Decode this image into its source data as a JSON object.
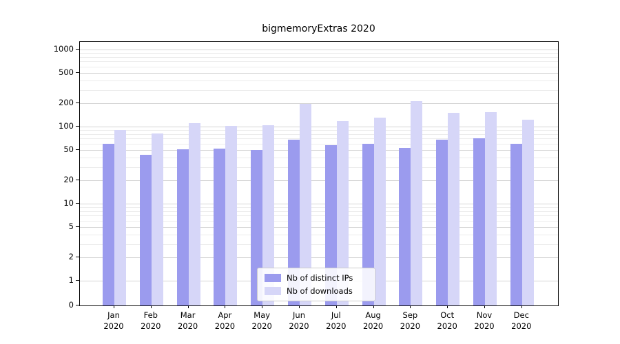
{
  "chart_data": {
    "type": "bar",
    "title": "bigmemoryExtras 2020",
    "categories": [
      "Jan",
      "Feb",
      "Mar",
      "Apr",
      "May",
      "Jun",
      "Jul",
      "Aug",
      "Sep",
      "Oct",
      "Nov",
      "Dec"
    ],
    "category_year": "2020",
    "series": [
      {
        "name": "Nb of distinct IPs",
        "color": "#9b9bee",
        "values": [
          60,
          43,
          51,
          52,
          50,
          68,
          58,
          60,
          53,
          68,
          71,
          60
        ]
      },
      {
        "name": "Nb of downloads",
        "color": "#d6d6f8",
        "values": [
          90,
          82,
          110,
          103,
          105,
          197,
          118,
          130,
          215,
          150,
          155,
          122
        ]
      }
    ],
    "yscale": "symlog",
    "yticks_major": [
      0,
      1,
      2,
      5,
      10,
      20,
      50,
      100,
      200,
      500,
      1000
    ],
    "yticks_minor": [
      3,
      4,
      6,
      7,
      8,
      9,
      30,
      40,
      60,
      70,
      80,
      90,
      300,
      400,
      600,
      700,
      800,
      900
    ],
    "ylim": [
      0,
      1200
    ],
    "grid": "horizontal",
    "legend_position": "lower-center"
  }
}
